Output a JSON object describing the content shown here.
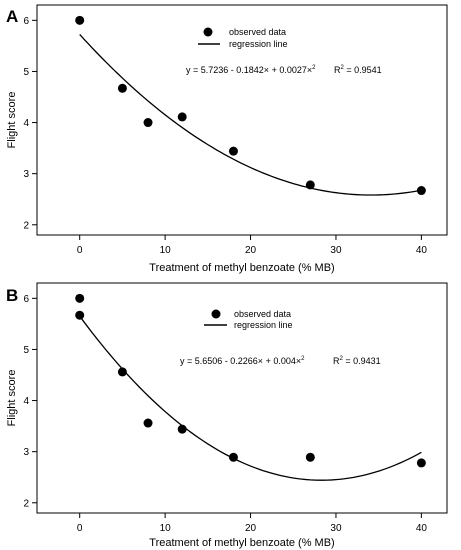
{
  "chart_data": [
    {
      "type": "scatter",
      "panel_label": "A",
      "xlabel": "Treatment of methyl benzoate (% MB)",
      "ylabel": "Flight score",
      "xlim": [
        -5,
        43
      ],
      "ylim": [
        1.8,
        6.3
      ],
      "xticks": [
        "0",
        "10",
        "20",
        "30",
        "40"
      ],
      "yticks": [
        "2",
        "3",
        "4",
        "5",
        "6"
      ],
      "series": [
        {
          "name": "observed data",
          "x": [
            0,
            5,
            8,
            12,
            18,
            27,
            40
          ],
          "y": [
            6.0,
            4.67,
            4.0,
            4.11,
            3.44,
            2.78,
            2.67
          ]
        }
      ],
      "regression": {
        "name": "regression line",
        "a": 5.7236,
        "b": -0.1842,
        "c": 0.0027,
        "x_range": [
          0,
          40
        ]
      },
      "legend": {
        "position": "top-center",
        "points_label": "observed data",
        "line_label": "regression line"
      },
      "equation": {
        "main": "y = 5.7236 - 0.1842× + 0.0027×",
        "sup": "2",
        "r2_label": "R",
        "r2_sup": "2",
        "r2_value": " = 0.9541"
      },
      "grid": false
    },
    {
      "type": "scatter",
      "panel_label": "B",
      "xlabel": "Treatment of methyl benzoate (% MB)",
      "ylabel": "Flight score",
      "xlim": [
        -5,
        43
      ],
      "ylim": [
        1.8,
        6.3
      ],
      "xticks": [
        "0",
        "10",
        "20",
        "30",
        "40"
      ],
      "yticks": [
        "2",
        "3",
        "4",
        "5",
        "6"
      ],
      "series": [
        {
          "name": "observed data",
          "x": [
            0,
            0,
            5,
            8,
            12,
            18,
            27,
            40
          ],
          "y": [
            6.0,
            5.67,
            4.56,
            3.56,
            3.44,
            2.89,
            2.89,
            2.78
          ]
        }
      ],
      "regression": {
        "name": "regression line",
        "a": 5.6506,
        "b": -0.2266,
        "c": 0.004,
        "x_range": [
          0,
          40
        ]
      },
      "legend": {
        "position": "top-center",
        "points_label": "observed data",
        "line_label": "regression line"
      },
      "equation": {
        "main": "y = 5.6506 - 0.2266× + 0.004×",
        "sup": "2",
        "r2_label": "R",
        "r2_sup": "2",
        "r2_value": " = 0.9431"
      },
      "grid": false
    }
  ]
}
